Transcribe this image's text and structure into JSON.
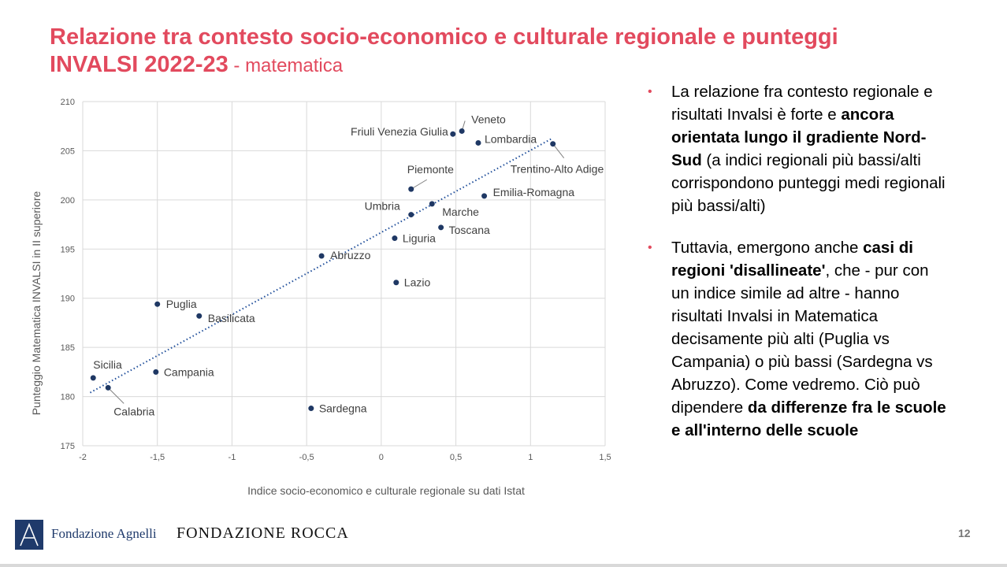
{
  "title": {
    "line1": "Relazione tra contesto socio-economico e culturale regionale e punteggi",
    "line2": "INVALSI 2022-23",
    "subtitle": " - matematica"
  },
  "chart_data": {
    "type": "scatter",
    "xlabel": "Indice socio-economico e culturale regionale su dati Istat",
    "ylabel": "Punteggio Matematica INVALSI in II superiore",
    "xlim": [
      -2,
      1.5
    ],
    "ylim": [
      175,
      210
    ],
    "xticks": [
      -2,
      -1.5,
      -1,
      -0.5,
      0,
      0.5,
      1,
      1.5
    ],
    "xtick_labels": [
      "-2",
      "-1,5",
      "-1",
      "-0,5",
      "0",
      "0,5",
      "1",
      "1,5"
    ],
    "yticks": [
      175,
      180,
      185,
      190,
      195,
      200,
      205,
      210
    ],
    "ytick_labels": [
      "175",
      "180",
      "185",
      "190",
      "195",
      "200",
      "205",
      "210"
    ],
    "grid": true,
    "trendline": {
      "style": "dotted linear",
      "from": [
        -1.95,
        180.4
      ],
      "to": [
        1.15,
        206.3
      ]
    },
    "marker_color": "#1f3864",
    "points": [
      {
        "name": "Veneto",
        "x": 0.54,
        "y": 207.0
      },
      {
        "name": "Friuli Venezia Giulia",
        "x": 0.48,
        "y": 206.7
      },
      {
        "name": "Lombardia",
        "x": 0.65,
        "y": 205.8
      },
      {
        "name": "Trentino-Alto Adige",
        "x": 1.15,
        "y": 205.7
      },
      {
        "name": "Piemonte",
        "x": 0.2,
        "y": 201.1
      },
      {
        "name": "Emilia-Romagna",
        "x": 0.69,
        "y": 200.4
      },
      {
        "name": "Umbria",
        "x": 0.2,
        "y": 198.5
      },
      {
        "name": "Marche",
        "x": 0.34,
        "y": 199.6
      },
      {
        "name": "Toscana",
        "x": 0.4,
        "y": 197.2
      },
      {
        "name": "Liguria",
        "x": 0.09,
        "y": 196.1
      },
      {
        "name": "Abruzzo",
        "x": -0.4,
        "y": 194.3
      },
      {
        "name": "Lazio",
        "x": 0.1,
        "y": 191.6
      },
      {
        "name": "Puglia",
        "x": -1.5,
        "y": 189.4
      },
      {
        "name": "Basilicata",
        "x": -1.22,
        "y": 188.2
      },
      {
        "name": "Sicilia",
        "x": -1.93,
        "y": 181.9
      },
      {
        "name": "Calabria",
        "x": -1.83,
        "y": 180.9
      },
      {
        "name": "Campania",
        "x": -1.51,
        "y": 182.5
      },
      {
        "name": "Sardegna",
        "x": -0.47,
        "y": 178.8
      }
    ]
  },
  "bullets": [
    {
      "parts": [
        {
          "text": "La relazione fra contesto regionale e risultati Invalsi è forte e ",
          "bold": false
        },
        {
          "text": "ancora orientata lungo il gradiente Nord-Sud",
          "bold": true
        },
        {
          "text": " (a indici regionali più bassi/alti corrispondono punteggi medi regionali più bassi/alti)",
          "bold": false
        }
      ]
    },
    {
      "parts": [
        {
          "text": "Tuttavia, emergono anche ",
          "bold": false
        },
        {
          "text": "casi di regioni 'disallineate'",
          "bold": true
        },
        {
          "text": ", che - pur con un indice simile ad altre - hanno risultati Invalsi in Matematica decisamente più alti (Puglia vs Campania) o più bassi (Sardegna vs Abruzzo). Come vedremo. Ciò può dipendere ",
          "bold": false
        },
        {
          "text": "da differenze fra le scuole e all'interno delle scuole",
          "bold": true
        }
      ]
    }
  ],
  "bullet_symbol": "•",
  "footer": {
    "logo_text_1": "Fondazione Agnelli",
    "logo_text_2": "FONDAZIONE ROCCA",
    "page_number": "12"
  },
  "colors": {
    "title": "#e24a5e",
    "markers": "#1f3864",
    "logo": "#1f3a6b"
  }
}
